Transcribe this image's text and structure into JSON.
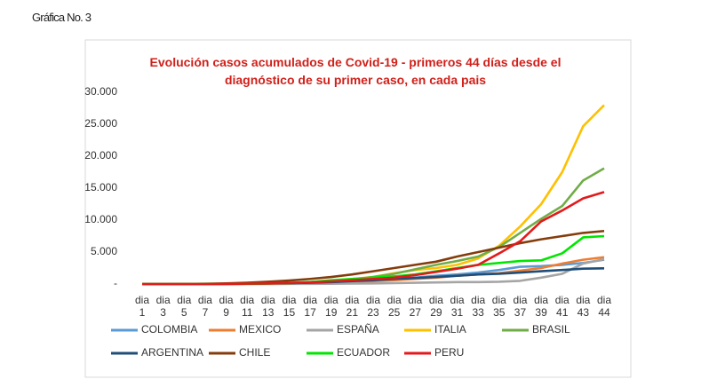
{
  "caption": "Gráfica No. 3",
  "chart_data": {
    "type": "line",
    "title": "Evolución casos acumulados de Covid-19 - primeros 44 días desde el diagnóstico de su primer caso, en cada pais",
    "categories": [
      "dia 1",
      "dia 3",
      "dia 5",
      "dia 7",
      "dia 9",
      "dia 11",
      "dia 13",
      "dia 15",
      "dia 17",
      "dia 19",
      "dia 21",
      "dia 23",
      "dia 25",
      "dia 27",
      "dia 29",
      "dia 31",
      "dia 33",
      "dia 35",
      "dia 37",
      "dia 39",
      "dia 41",
      "dia 43",
      "dia 44"
    ],
    "ylim": [
      0,
      30000
    ],
    "yticks": [
      {
        "value": 0,
        "label": "-"
      },
      {
        "value": 5000,
        "label": "5.000"
      },
      {
        "value": 10000,
        "label": "10.000"
      },
      {
        "value": 15000,
        "label": "15.000"
      },
      {
        "value": 20000,
        "label": "20.000"
      },
      {
        "value": 25000,
        "label": "25.000"
      },
      {
        "value": 30000,
        "label": "30.000"
      }
    ],
    "series": [
      {
        "name": "COLOMBIA",
        "color": "#5b9bd5",
        "values": [
          0,
          0,
          0,
          10,
          30,
          60,
          100,
          150,
          200,
          300,
          400,
          600,
          800,
          1000,
          1300,
          1500,
          1800,
          2200,
          2700,
          2800,
          3000,
          3300,
          3800
        ]
      },
      {
        "name": "MEXICO",
        "color": "#ed7d31",
        "values": [
          0,
          0,
          0,
          0,
          10,
          20,
          50,
          80,
          150,
          250,
          350,
          450,
          600,
          800,
          1000,
          1300,
          1500,
          1700,
          2100,
          2500,
          3200,
          3800,
          4200
        ]
      },
      {
        "name": "ESPAÑA",
        "color": "#a5a5a5",
        "values": [
          0,
          0,
          0,
          0,
          0,
          0,
          10,
          20,
          30,
          50,
          80,
          100,
          150,
          200,
          250,
          300,
          300,
          350,
          500,
          1000,
          1600,
          3200,
          3900
        ]
      },
      {
        "name": "ITALIA",
        "color": "#ffc000",
        "values": [
          0,
          0,
          0,
          0,
          3,
          20,
          80,
          150,
          300,
          500,
          800,
          1100,
          1700,
          2200,
          2500,
          3000,
          4000,
          6000,
          9000,
          12500,
          17500,
          24700,
          28000
        ]
      },
      {
        "name": "BRASIL",
        "color": "#70ad47",
        "values": [
          0,
          0,
          0,
          0,
          0,
          50,
          100,
          200,
          300,
          500,
          700,
          1100,
          1600,
          2300,
          3000,
          3600,
          4300,
          5800,
          8000,
          10200,
          12200,
          16200,
          18100
        ]
      },
      {
        "name": "ARGENTINA",
        "color": "#1f4e79",
        "values": [
          0,
          0,
          0,
          0,
          20,
          50,
          100,
          150,
          200,
          300,
          450,
          600,
          800,
          950,
          1100,
          1300,
          1500,
          1600,
          1800,
          2000,
          2200,
          2400,
          2450
        ]
      },
      {
        "name": "CHILE",
        "color": "#843c0c",
        "values": [
          0,
          0,
          10,
          50,
          100,
          200,
          350,
          550,
          800,
          1100,
          1500,
          2000,
          2500,
          3000,
          3500,
          4300,
          5000,
          5700,
          6400,
          7000,
          7500,
          8000,
          8300
        ]
      },
      {
        "name": "ECUADOR",
        "color": "#00e600",
        "values": [
          0,
          0,
          0,
          10,
          20,
          50,
          100,
          150,
          300,
          600,
          800,
          1000,
          1200,
          1500,
          2000,
          2500,
          3000,
          3300,
          3600,
          3700,
          4800,
          7300,
          7500
        ]
      },
      {
        "name": "PERU",
        "color": "#e31a1c",
        "values": [
          0,
          0,
          0,
          0,
          20,
          60,
          100,
          150,
          250,
          400,
          600,
          800,
          1000,
          1400,
          1900,
          2400,
          3000,
          4800,
          6700,
          9800,
          11500,
          13400,
          14400
        ]
      }
    ]
  }
}
